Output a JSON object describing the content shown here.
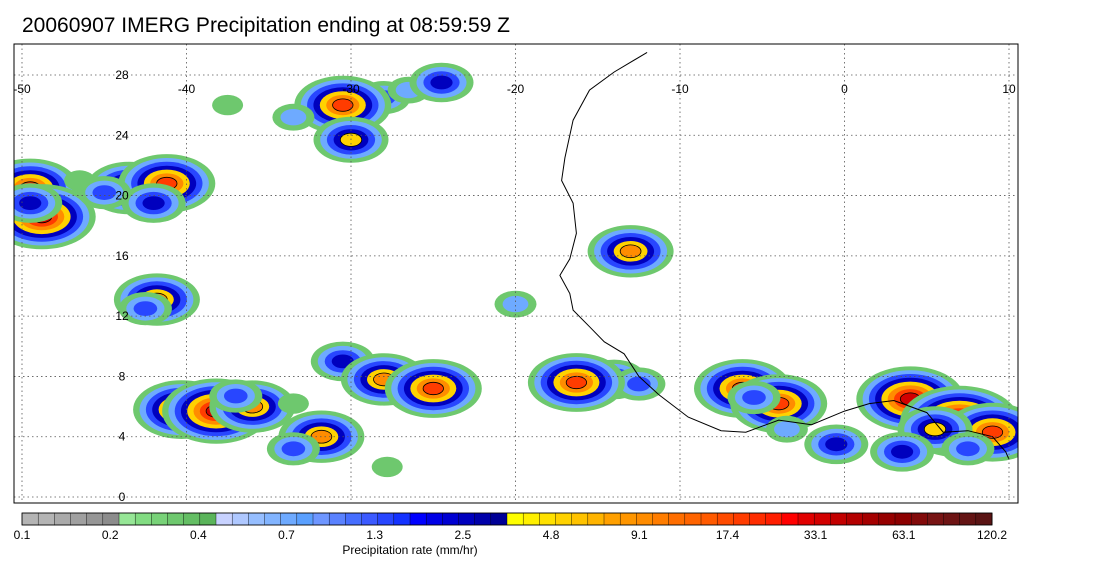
{
  "title": "20060907 IMERG Precipitation ending at 08:59:59 Z",
  "map": {
    "lon_range": [
      -50,
      10
    ],
    "lat_range": [
      -0.5,
      29.5
    ],
    "lon_ticks": [
      -50,
      -40,
      -30,
      -20,
      -10,
      0,
      10
    ],
    "lon_tick_labels": [
      "-50",
      "-40",
      "-30",
      "-20",
      "-10",
      "0",
      "10"
    ],
    "lat_ticks": [
      0,
      4,
      8,
      12,
      16,
      20,
      24,
      28
    ],
    "lat_tick_labels": [
      "0",
      "4",
      "8",
      "12",
      "16",
      "20",
      "24",
      "28"
    ],
    "grid": "dotted",
    "coastline_color": "#000000",
    "coastline": [
      [
        -12,
        29.5
      ],
      [
        -14,
        28.2
      ],
      [
        -15.5,
        27
      ],
      [
        -16.5,
        25
      ],
      [
        -17,
        22.5
      ],
      [
        -17.2,
        21
      ],
      [
        -16.5,
        19.5
      ],
      [
        -16.3,
        17.5
      ],
      [
        -16.7,
        15.8
      ],
      [
        -17.3,
        14.7
      ],
      [
        -16.7,
        13.5
      ],
      [
        -16.5,
        12.4
      ],
      [
        -15.5,
        11.3
      ],
      [
        -14.6,
        10.3
      ],
      [
        -13.4,
        9.5
      ],
      [
        -12.5,
        8
      ],
      [
        -11.3,
        6.8
      ],
      [
        -9.5,
        5.3
      ],
      [
        -7.5,
        4.4
      ],
      [
        -6,
        4.3
      ],
      [
        -4,
        5.1
      ],
      [
        -2,
        4.8
      ],
      [
        0,
        5.7
      ],
      [
        1.5,
        6.2
      ],
      [
        3,
        6.4
      ],
      [
        5,
        5.6
      ],
      [
        6,
        4.3
      ],
      [
        7.5,
        4.4
      ],
      [
        9,
        4
      ],
      [
        9.8,
        3
      ],
      [
        10,
        2.5
      ]
    ],
    "precip_cells": [
      {
        "lon": -31,
        "lat": 25.5,
        "rate": 0.4
      },
      {
        "lon": -28,
        "lat": 26.5,
        "rate": 1.3
      },
      {
        "lon": -30.5,
        "lat": 26,
        "rate": 17.4
      },
      {
        "lon": -26.5,
        "lat": 27,
        "rate": 0.7
      },
      {
        "lon": -24.5,
        "lat": 27.5,
        "rate": 2.5
      },
      {
        "lon": -33.5,
        "lat": 25.2,
        "rate": 0.7
      },
      {
        "lon": -37.5,
        "lat": 26,
        "rate": 0.4
      },
      {
        "lon": -30,
        "lat": 23.7,
        "rate": 4.8
      },
      {
        "lon": -49.5,
        "lat": 20.5,
        "rate": 17.4
      },
      {
        "lon": -48.8,
        "lat": 18.6,
        "rate": 33.1
      },
      {
        "lon": -49.5,
        "lat": 19.5,
        "rate": 2.5
      },
      {
        "lon": -46.5,
        "lat": 21,
        "rate": 0.4
      },
      {
        "lon": -43.5,
        "lat": 20.5,
        "rate": 9.1
      },
      {
        "lon": -41.2,
        "lat": 20.8,
        "rate": 17.4
      },
      {
        "lon": -42,
        "lat": 19.5,
        "rate": 2.5
      },
      {
        "lon": -45,
        "lat": 20.2,
        "rate": 1.3
      },
      {
        "lon": -41.8,
        "lat": 13.1,
        "rate": 9.1
      },
      {
        "lon": -42.5,
        "lat": 12.5,
        "rate": 1.3
      },
      {
        "lon": -40.3,
        "lat": 5.8,
        "rate": 17.4
      },
      {
        "lon": -38.2,
        "lat": 5.7,
        "rate": 33.1
      },
      {
        "lon": -36,
        "lat": 6,
        "rate": 9.1
      },
      {
        "lon": -37,
        "lat": 6.7,
        "rate": 1.3
      },
      {
        "lon": -33.5,
        "lat": 6.2,
        "rate": 0.4
      },
      {
        "lon": -31.8,
        "lat": 4,
        "rate": 9.1
      },
      {
        "lon": -33.5,
        "lat": 3.2,
        "rate": 1.3
      },
      {
        "lon": -30.5,
        "lat": 9,
        "rate": 2.5
      },
      {
        "lon": -28,
        "lat": 7.8,
        "rate": 9.1
      },
      {
        "lon": -25,
        "lat": 7.2,
        "rate": 17.4
      },
      {
        "lon": -27.8,
        "lat": 2,
        "rate": 0.4
      },
      {
        "lon": -20,
        "lat": 12.8,
        "rate": 0.7
      },
      {
        "lon": -13,
        "lat": 16.3,
        "rate": 9.1
      },
      {
        "lon": -17,
        "lat": 8.4,
        "rate": 0.7
      },
      {
        "lon": -16.2,
        "lat": 7.5,
        "rate": 4.8
      },
      {
        "lon": -14,
        "lat": 7.8,
        "rate": 2.5
      },
      {
        "lon": -12.5,
        "lat": 7.5,
        "rate": 1.3
      },
      {
        "lon": -16.3,
        "lat": 7.6,
        "rate": 17.4
      },
      {
        "lon": -6.2,
        "lat": 7.2,
        "rate": 17.4
      },
      {
        "lon": -4,
        "lat": 6.2,
        "rate": 17.4
      },
      {
        "lon": -5.5,
        "lat": 6.6,
        "rate": 1.3
      },
      {
        "lon": -3.5,
        "lat": 4.5,
        "rate": 0.7
      },
      {
        "lon": -0.5,
        "lat": 3.5,
        "rate": 2.5
      },
      {
        "lon": 4,
        "lat": 6.5,
        "rate": 33.1
      },
      {
        "lon": 7,
        "lat": 5,
        "rate": 63.1
      },
      {
        "lon": 9,
        "lat": 4.3,
        "rate": 17.4
      },
      {
        "lon": 5.5,
        "lat": 4.5,
        "rate": 4.8
      },
      {
        "lon": 7.5,
        "lat": 3.2,
        "rate": 1.3
      },
      {
        "lon": 3.5,
        "lat": 3,
        "rate": 2.5
      }
    ]
  },
  "colorbar": {
    "title": "Precipitation rate (mm/hr)",
    "labels": [
      "0.1",
      "0.2",
      "0.4",
      "0.7",
      "1.3",
      "2.5",
      "4.8",
      "9.1",
      "17.4",
      "33.1",
      "63.1",
      "120.2"
    ],
    "colors": [
      "#b4b4b4",
      "#b4b4b4",
      "#aaaaaa",
      "#a0a0a0",
      "#969696",
      "#8c8c8c",
      "#96e696",
      "#82dc82",
      "#78d278",
      "#6ec86e",
      "#64be64",
      "#5ab45a",
      "#c8d2ff",
      "#afc8ff",
      "#96beff",
      "#82b4ff",
      "#6eaaff",
      "#5aa0ff",
      "#6e96ff",
      "#5a82ff",
      "#466eff",
      "#3c5aff",
      "#2846ff",
      "#1432ff",
      "#0000ff",
      "#0000e6",
      "#0000d2",
      "#0000be",
      "#0000aa",
      "#000096",
      "#ffff00",
      "#fff000",
      "#ffe100",
      "#ffd200",
      "#ffc300",
      "#ffb400",
      "#ffa000",
      "#ff9600",
      "#ff8c00",
      "#ff7d00",
      "#ff6e00",
      "#ff6400",
      "#ff5a00",
      "#ff4b00",
      "#ff3c00",
      "#ff2d00",
      "#ff1e00",
      "#ff0000",
      "#e10000",
      "#d20000",
      "#c30000",
      "#b40000",
      "#a50000",
      "#960000",
      "#8c0000",
      "#820a0a",
      "#781414",
      "#6e1414",
      "#641414",
      "#5a1414"
    ]
  }
}
